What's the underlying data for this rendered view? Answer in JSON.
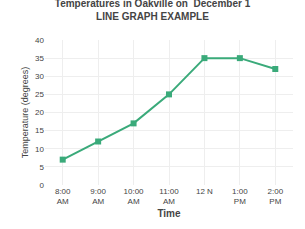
{
  "chart_data": {
    "type": "line",
    "title": "Temperatures in Oakville on  December 1",
    "subtitle": "LINE GRAPH EXAMPLE",
    "x_label": "Time",
    "y_label": "Temperature (degrees)",
    "categories": [
      "8:00\nAM",
      "9:00\nAM",
      "10:00\nAM",
      "11:00\nAM",
      "12 N",
      "1:00\nPM",
      "2:00\nPM"
    ],
    "values": [
      7,
      12,
      17,
      25,
      35,
      35,
      32
    ],
    "color": "#3aaa7a",
    "marker": "square",
    "ylim": [
      0,
      40
    ],
    "yticks": [
      0,
      5,
      10,
      15,
      20,
      25,
      30,
      35,
      40
    ],
    "grid": true
  }
}
